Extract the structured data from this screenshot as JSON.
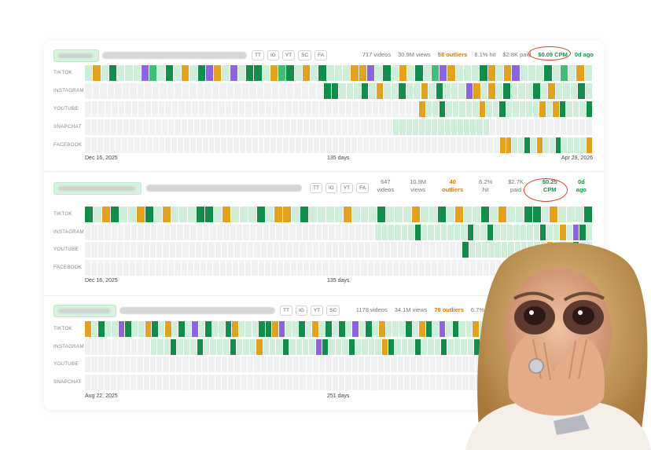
{
  "colors": {
    "empty": "#eff1f3",
    "light_green": "#cfeeda",
    "mid_green": "#a7e0bb",
    "green": "#3fbf76",
    "dark_green": "#0f8f4a",
    "orange": "#e5a11a",
    "purple": "#8e62e6",
    "highlight": "#d2492e"
  },
  "platform_chips": [
    "TT",
    "IG",
    "YT",
    "SC",
    "FA"
  ],
  "sections": [
    {
      "chips": [
        "TT",
        "IG",
        "YT",
        "SC",
        "FA"
      ],
      "stats": {
        "videos": "717 videos",
        "views": "30.9M views",
        "outliers": "58 outliers",
        "hit": "8.1% hit",
        "paid": "$2.8K paid",
        "cpm": "$0.09 CPM",
        "ago": "0d ago"
      },
      "rows": [
        {
          "label": "TIKTOK",
          "pattern": "gogdgggpbgdgogdpogpgddgobdgogdgggoopgdgogdgbpogggdogopgggdgbgog"
        },
        {
          "label": "INSTAGRAM",
          "pattern": "eeeeeeeeeeeeeeeeeeeeeeeeeeeeeeeeddgggdgolgdggogdgggpogogdggldgogggdg"
        },
        {
          "label": "YOUTUBE",
          "pattern": "eeeeeeeeeeeeeeeeeeeeeeeeeeeeeeeeeeeeeeeeeeeeeeeeeeolgdglglgolldgggllogodllgd"
        },
        {
          "label": "SNAPCHAT",
          "pattern": "eeeeeeeeeeeeeeeeeeeeeeeeeeeeeeeeeeeeeeeeeeeeeeeellllllllllllllleeeeeeeeeeeeeeee"
        },
        {
          "label": "FACEBOOK",
          "pattern": "eeeeeeeeeeeeeeeeeeeeeeeeeeeeeeeeeeeeeeeeeeeeeeeeeeeeeeeeeeeeeeeeeeeoolldgolldlllgo"
        }
      ],
      "axis": {
        "start": "Dec 16, 2025",
        "mid": "135 days",
        "end": "Apr 29, 2026"
      }
    },
    {
      "chips": [
        "TT",
        "IG",
        "YT",
        "FA"
      ],
      "stats": {
        "videos_n": "647",
        "videos_l": "videos",
        "views_n": "10.9M",
        "views_l": "views",
        "outliers_n": "40",
        "outliers_l": "outliers",
        "hit_n": "6.2%",
        "hit_l": "hit",
        "paid_n": "$2.7K",
        "paid_l": "paid",
        "cpm_n": "$0.25",
        "cpm_l": "CPM",
        "ago_n": "0d",
        "ago_l": "ago"
      },
      "rows": [
        {
          "label": "TIKTOK",
          "pattern": "dgodglodgoglgddgoggldgoogdglggoglgdgggolgdgoggdgolgddgoggld"
        },
        {
          "label": "INSTAGRAM",
          "pattern": "eeeeeeeeeeeeeeeeeeeeeeeeeeeeeeeeeeeeeeeeeeeelllllldllllllldlldlllgllgdllogpdl"
        },
        {
          "label": "YOUTUBE",
          "pattern": "eeeeeeeeeeeeeeeeeeeeeeeeeeeeeeeeeeeeeeeeeeeeeeeeeeeeeeeeeedllgllglllllgollldgl"
        },
        {
          "label": "FACEBOOK",
          "pattern": "eeeeeeeeeeeeeeeeeeeeeeeeeeeeeeeeeeeeeeeeeeeeeeeeeeeeeeeeeeeeeeeeeeeeeeeeeeeelll"
        }
      ],
      "axis": {
        "start": "Dec 16, 2025",
        "mid": "135 days",
        "end": ""
      }
    },
    {
      "chips": [
        "TT",
        "IG",
        "YT",
        "SC"
      ],
      "stats": {
        "videos": "1178 videos",
        "views": "34.1M views",
        "outliers": "79 outliers",
        "hit": "6.7% hit"
      },
      "rows": [
        {
          "label": "TIKTOK",
          "pattern": "ogdlgpdglodgoldgpgdlgdoglgddopgldgoldgdgpldgoglgdgodgpldglogdgodgoldgpgldgdo"
        },
        {
          "label": "INSTAGRAM",
          "pattern": "eeeeeeeeeelgldglldgllgdllgoglldllglpdllgdllglodlgldllgdlglldlgllolgdlglldglgd"
        },
        {
          "label": "YOUTUBE",
          "pattern": "eeeeeeeeeeeeeeeeeeeeeeeeeeeeeeeeeeeeeeeeeeeeeeeeeeeeeeeeeeeeeeeeeeeeeeelllllll"
        },
        {
          "label": "SNAPCHAT",
          "pattern": "eeeeeeeeeeeeeeeeeeeeeeeeeeeeeeeeeeeeeeeeeeeeeeeeeeeeeeeeeeeeeeeeeeeeeeeeeeelll"
        }
      ],
      "axis": {
        "start": "Aug 22, 2025",
        "mid": "251 days",
        "end": ""
      }
    }
  ],
  "reaction_image": {
    "description_icon": "shocked-woman-hands-on-face"
  }
}
